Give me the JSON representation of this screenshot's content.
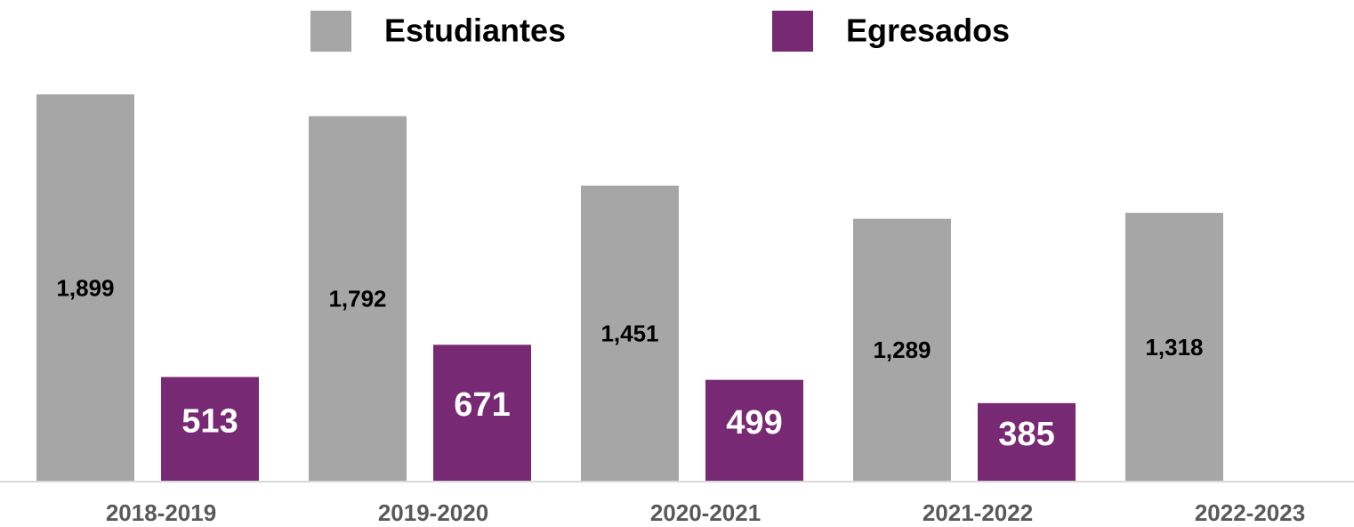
{
  "chart_data": {
    "type": "bar",
    "categories": [
      "2018-2019",
      "2019-2020",
      "2020-2021",
      "2021-2022",
      "2022-2023"
    ],
    "series": [
      {
        "name": "Estudiantes",
        "color": "#a6a6a6",
        "values": [
          1899,
          1792,
          1451,
          1289,
          1318
        ],
        "value_labels": [
          "1,899",
          "1,792",
          "1,451",
          "1,289",
          "1,318"
        ]
      },
      {
        "name": "Egresados",
        "color": "#772a73",
        "values": [
          513,
          671,
          499,
          385,
          null
        ]
      }
    ],
    "legend": "top"
  }
}
